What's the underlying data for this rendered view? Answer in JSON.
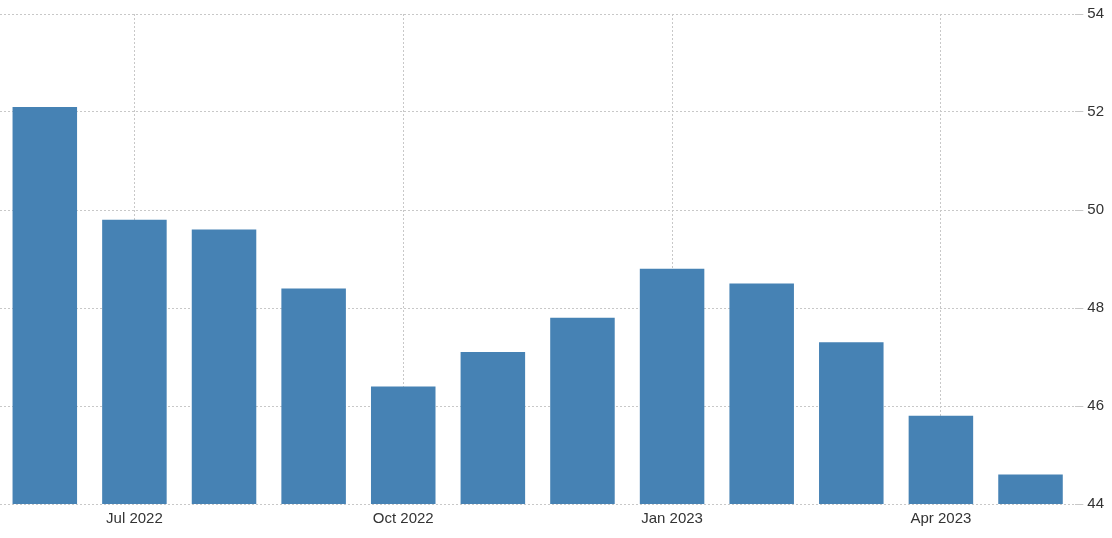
{
  "chart_data": {
    "type": "bar",
    "categories": [
      null,
      "Jul 2022",
      null,
      null,
      "Oct 2022",
      null,
      null,
      "Jan 2023",
      null,
      null,
      "Apr 2023",
      null
    ],
    "values": [
      52.1,
      49.8,
      49.6,
      48.4,
      46.4,
      47.1,
      47.8,
      48.8,
      48.5,
      47.3,
      45.8,
      44.6
    ],
    "color": "#4682b4",
    "ylim": [
      44,
      54
    ],
    "yticks": [
      44,
      46,
      48,
      50,
      52,
      54
    ],
    "grid": true,
    "legend": false
  }
}
